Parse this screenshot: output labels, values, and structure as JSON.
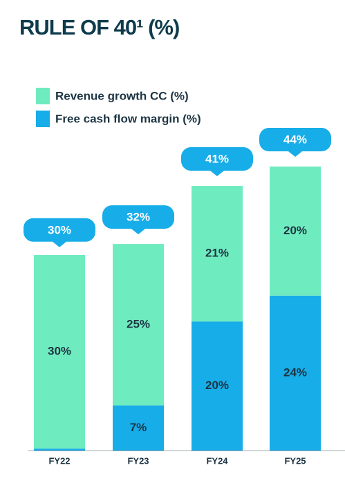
{
  "chart_data": {
    "type": "stacked-bar",
    "title": "RULE OF 40¹ (%)",
    "categories": [
      "FY22",
      "FY23",
      "FY24",
      "FY25"
    ],
    "series": [
      {
        "name": "Free cash flow margin (%)",
        "color": "#17ade8",
        "values": [
          0.3,
          7,
          20,
          24
        ],
        "value_labels": [
          null,
          "7%",
          "20%",
          "24%"
        ]
      },
      {
        "name": "Revenue growth CC (%)",
        "color": "#6fecbf",
        "values": [
          30,
          25,
          21,
          20
        ],
        "value_labels": [
          "30%",
          "25%",
          "21%",
          "20%"
        ]
      }
    ],
    "totals": {
      "values": [
        30,
        32,
        41,
        44
      ],
      "value_labels": [
        "30%",
        "32%",
        "41%",
        "44%"
      ],
      "color": "#17ade8"
    }
  }
}
